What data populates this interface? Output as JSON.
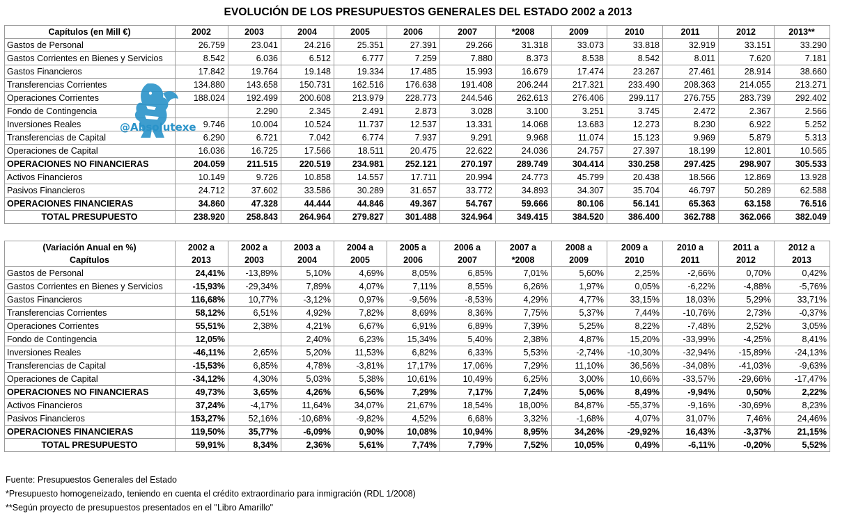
{
  "title": "EVOLUCIÓN DE LOS PRESUPUESTOS GENERALES DEL ESTADO 2002 a 2013",
  "table1": {
    "header_label": "Capítulos (en Mill €)",
    "years": [
      "2002",
      "2003",
      "2004",
      "2005",
      "2006",
      "2007",
      "*2008",
      "2009",
      "2010",
      "2011",
      "2012",
      "2013**"
    ],
    "rows": [
      {
        "label": "Gastos de Personal",
        "values": [
          "26.759",
          "23.041",
          "24.216",
          "25.351",
          "27.391",
          "29.266",
          "31.318",
          "33.073",
          "33.818",
          "32.919",
          "33.151",
          "33.290"
        ]
      },
      {
        "label": "Gastos Corrientes en Bienes y Servicios",
        "values": [
          "8.542",
          "6.036",
          "6.512",
          "6.777",
          "7.259",
          "7.880",
          "8.373",
          "8.538",
          "8.542",
          "8.011",
          "7.620",
          "7.181"
        ]
      },
      {
        "label": "Gastos Financieros",
        "values": [
          "17.842",
          "19.764",
          "19.148",
          "19.334",
          "17.485",
          "15.993",
          "16.679",
          "17.474",
          "23.267",
          "27.461",
          "28.914",
          "38.660"
        ]
      },
      {
        "label": "Transferencias Corrientes",
        "values": [
          "134.880",
          "143.658",
          "150.731",
          "162.516",
          "176.638",
          "191.408",
          "206.244",
          "217.321",
          "233.490",
          "208.363",
          "214.055",
          "213.271"
        ]
      },
      {
        "label": "Operaciones Corrientes",
        "values": [
          "188.024",
          "192.499",
          "200.608",
          "213.979",
          "228.773",
          "244.546",
          "262.613",
          "276.406",
          "299.117",
          "276.755",
          "283.739",
          "292.402"
        ]
      },
      {
        "label": "Fondo de Contingencia",
        "values": [
          "",
          "2.290",
          "2.345",
          "2.491",
          "2.873",
          "3.028",
          "3.100",
          "3.251",
          "3.745",
          "2.472",
          "2.367",
          "2.566"
        ]
      },
      {
        "label": "Inversiones Reales",
        "values": [
          "9.746",
          "10.004",
          "10.524",
          "11.737",
          "12.537",
          "13.331",
          "14.068",
          "13.683",
          "12.273",
          "8.230",
          "6.922",
          "5.252"
        ]
      },
      {
        "label": "Transferencias de Capital",
        "values": [
          "6.290",
          "6.721",
          "7.042",
          "6.774",
          "7.937",
          "9.291",
          "9.968",
          "11.074",
          "15.123",
          "9.969",
          "5.879",
          "5.313"
        ]
      },
      {
        "label": "Operaciones de Capital",
        "values": [
          "16.036",
          "16.725",
          "17.566",
          "18.511",
          "20.475",
          "22.622",
          "24.036",
          "24.757",
          "27.397",
          "18.199",
          "12.801",
          "10.565"
        ]
      },
      {
        "label": "OPERACIONES NO FINANCIERAS",
        "values": [
          "204.059",
          "211.515",
          "220.519",
          "234.981",
          "252.121",
          "270.197",
          "289.749",
          "304.414",
          "330.258",
          "297.425",
          "298.907",
          "305.533"
        ],
        "bold": true
      },
      {
        "label": "Activos Financieros",
        "values": [
          "10.149",
          "9.726",
          "10.858",
          "14.557",
          "17.711",
          "20.994",
          "24.773",
          "45.799",
          "20.438",
          "18.566",
          "12.869",
          "13.928"
        ],
        "sep": true
      },
      {
        "label": "Pasivos Financieros",
        "values": [
          "24.712",
          "37.602",
          "33.586",
          "30.289",
          "31.657",
          "33.772",
          "34.893",
          "34.307",
          "35.704",
          "46.797",
          "50.289",
          "62.588"
        ]
      },
      {
        "label": "OPERACIONES FINANCIERAS",
        "values": [
          "34.860",
          "47.328",
          "44.444",
          "44.846",
          "49.367",
          "54.767",
          "59.666",
          "80.106",
          "56.141",
          "65.363",
          "63.158",
          "76.516"
        ],
        "bold": true
      },
      {
        "label": "TOTAL PRESUPUESTO",
        "values": [
          "238.920",
          "258.843",
          "264.964",
          "279.827",
          "301.488",
          "324.964",
          "349.415",
          "384.520",
          "386.400",
          "362.788",
          "362.066",
          "382.049"
        ],
        "bold": true,
        "sep": true,
        "total": true
      }
    ]
  },
  "table2": {
    "header_label_1": "(Variación Anual en %)",
    "header_label_2": "Capítulos",
    "head1": [
      "2002 a",
      "2002 a",
      "2003 a",
      "2004 a",
      "2005 a",
      "2006 a",
      "2007 a",
      "2008 a",
      "2009 a",
      "2010 a",
      "2011 a",
      "2012 a"
    ],
    "head2": [
      "2013",
      "2003",
      "2004",
      "2005",
      "2006",
      "2007",
      "*2008",
      "2009",
      "2010",
      "2011",
      "2012",
      "2013"
    ],
    "rows": [
      {
        "label": "Gastos de Personal",
        "values": [
          "24,41%",
          "-13,89%",
          "5,10%",
          "4,69%",
          "8,05%",
          "6,85%",
          "7,01%",
          "5,60%",
          "2,25%",
          "-2,66%",
          "0,70%",
          "0,42%"
        ]
      },
      {
        "label": "Gastos Corrientes en Bienes y Servicios",
        "values": [
          "-15,93%",
          "-29,34%",
          "7,89%",
          "4,07%",
          "7,11%",
          "8,55%",
          "6,26%",
          "1,97%",
          "0,05%",
          "-6,22%",
          "-4,88%",
          "-5,76%"
        ]
      },
      {
        "label": "Gastos Financieros",
        "values": [
          "116,68%",
          "10,77%",
          "-3,12%",
          "0,97%",
          "-9,56%",
          "-8,53%",
          "4,29%",
          "4,77%",
          "33,15%",
          "18,03%",
          "5,29%",
          "33,71%"
        ]
      },
      {
        "label": "Transferencias Corrientes",
        "values": [
          "58,12%",
          "6,51%",
          "4,92%",
          "7,82%",
          "8,69%",
          "8,36%",
          "7,75%",
          "5,37%",
          "7,44%",
          "-10,76%",
          "2,73%",
          "-0,37%"
        ]
      },
      {
        "label": "Operaciones Corrientes",
        "values": [
          "55,51%",
          "2,38%",
          "4,21%",
          "6,67%",
          "6,91%",
          "6,89%",
          "7,39%",
          "5,25%",
          "8,22%",
          "-7,48%",
          "2,52%",
          "3,05%"
        ]
      },
      {
        "label": "Fondo de Contingencia",
        "values": [
          "12,05%",
          "",
          "2,40%",
          "6,23%",
          "15,34%",
          "5,40%",
          "2,38%",
          "4,87%",
          "15,20%",
          "-33,99%",
          "-4,25%",
          "8,41%"
        ]
      },
      {
        "label": "Inversiones Reales",
        "values": [
          "-46,11%",
          "2,65%",
          "5,20%",
          "11,53%",
          "6,82%",
          "6,33%",
          "5,53%",
          "-2,74%",
          "-10,30%",
          "-32,94%",
          "-15,89%",
          "-24,13%"
        ]
      },
      {
        "label": "Transferencias de Capital",
        "values": [
          "-15,53%",
          "6,85%",
          "4,78%",
          "-3,81%",
          "17,17%",
          "17,06%",
          "7,29%",
          "11,10%",
          "36,56%",
          "-34,08%",
          "-41,03%",
          "-9,63%"
        ]
      },
      {
        "label": "Operaciones de Capital",
        "values": [
          "-34,12%",
          "4,30%",
          "5,03%",
          "5,38%",
          "10,61%",
          "10,49%",
          "6,25%",
          "3,00%",
          "10,66%",
          "-33,57%",
          "-29,66%",
          "-17,47%"
        ]
      },
      {
        "label": "OPERACIONES NO FINANCIERAS",
        "values": [
          "49,73%",
          "3,65%",
          "4,26%",
          "6,56%",
          "7,29%",
          "7,17%",
          "7,24%",
          "5,06%",
          "8,49%",
          "-9,94%",
          "0,50%",
          "2,22%"
        ],
        "bold": true
      },
      {
        "label": "Activos Financieros",
        "values": [
          "37,24%",
          "-4,17%",
          "11,64%",
          "34,07%",
          "21,67%",
          "18,54%",
          "18,00%",
          "84,87%",
          "-55,37%",
          "-9,16%",
          "-30,69%",
          "8,23%"
        ],
        "sep": true
      },
      {
        "label": "Pasivos Financieros",
        "values": [
          "153,27%",
          "52,16%",
          "-10,68%",
          "-9,82%",
          "4,52%",
          "6,68%",
          "3,32%",
          "-1,68%",
          "4,07%",
          "31,07%",
          "7,46%",
          "24,46%"
        ]
      },
      {
        "label": "OPERACIONES FINANCIERAS",
        "values": [
          "119,50%",
          "35,77%",
          "-6,09%",
          "0,90%",
          "10,08%",
          "10,94%",
          "8,95%",
          "34,26%",
          "-29,92%",
          "16,43%",
          "-3,37%",
          "21,15%"
        ],
        "bold": true
      },
      {
        "label": "TOTAL PRESUPUESTO",
        "values": [
          "59,91%",
          "8,34%",
          "2,36%",
          "5,61%",
          "7,74%",
          "7,79%",
          "7,52%",
          "10,05%",
          "0,49%",
          "-6,11%",
          "-0,20%",
          "5,52%"
        ],
        "bold": true,
        "sep": true,
        "total": true
      }
    ]
  },
  "watermark": {
    "handle": "@Absolutexe",
    "color": "#2a93c9",
    "icon": "griffin-logo-icon"
  },
  "notes": [
    "Fuente: Presupuestos Generales del Estado",
    "*Presupuesto homogeneizado, teniendo en cuenta el crédito extraordinario para inmigración (RDL 1/2008)",
    "**Según proyecto de presupuestos presentados en el \"Libro Amarillo\""
  ]
}
